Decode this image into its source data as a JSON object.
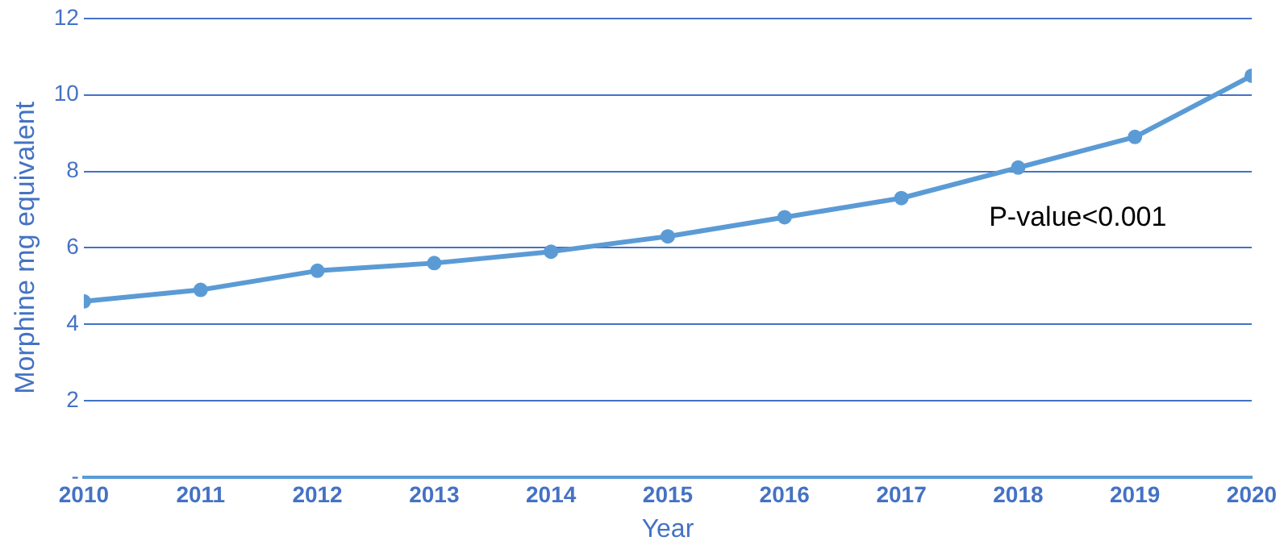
{
  "chart_data": {
    "type": "line",
    "xlabel": "Year",
    "ylabel": "Morphine mg equivalent",
    "x": [
      2010,
      2011,
      2012,
      2013,
      2014,
      2015,
      2016,
      2017,
      2018,
      2019,
      2020
    ],
    "series": [
      {
        "color": "#5b9bd5",
        "values": [
          4.6,
          4.9,
          5.4,
          5.6,
          5.9,
          6.3,
          6.8,
          7.3,
          8.1,
          8.9,
          10.5
        ]
      }
    ],
    "xlim": [
      2010,
      2020
    ],
    "xticks": [
      2010,
      2011,
      2012,
      2013,
      2014,
      2015,
      2016,
      2017,
      2018,
      2019,
      2020
    ],
    "ylim": [
      0,
      12
    ],
    "yticks": [
      {
        "value": 0,
        "label": "-"
      },
      2,
      4,
      6,
      8,
      10,
      12
    ],
    "grid": "y",
    "legend": false,
    "marker": "circle",
    "line_style": "solid",
    "annotations": [
      "P-value<0.001"
    ]
  }
}
